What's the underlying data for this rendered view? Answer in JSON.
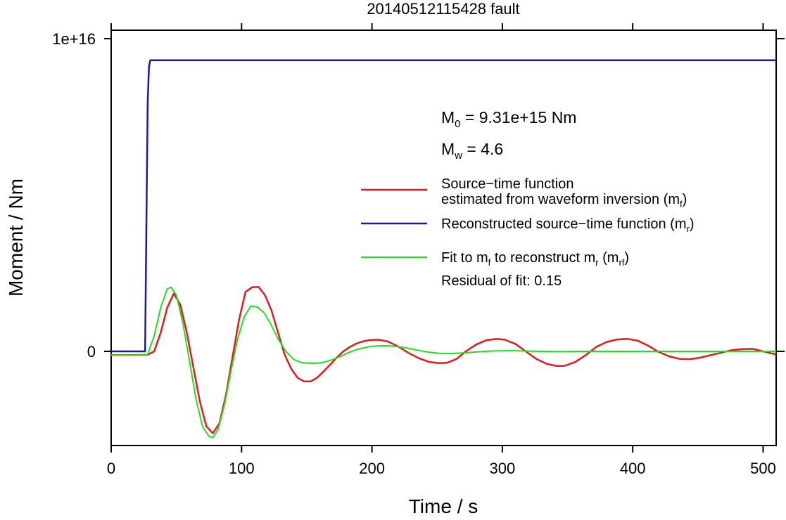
{
  "chart_data": {
    "type": "line",
    "title": "20140512115428 fault",
    "xlabel": "Time / s",
    "ylabel": "Moment / Nm",
    "xlim": [
      0,
      510
    ],
    "ylim": [
      -3000000000000000.0,
      1e+16
    ],
    "x_ticks": [
      0,
      100,
      200,
      300,
      400,
      500
    ],
    "y_tick_labels": [
      {
        "value": 1e+16,
        "label": "1e+16"
      },
      {
        "value": 0,
        "label": "0"
      }
    ],
    "grid": false,
    "legend_placement": "right",
    "annotations": {
      "m0": {
        "main": "M",
        "sub": "0",
        "rest": " = 9.31e+15 Nm"
      },
      "mw": {
        "main": "M",
        "sub": "w",
        "rest": " = 4.6"
      },
      "residual": "Residual of fit: 0.15"
    },
    "series": [
      {
        "name": "Source-time function estimated from waveform inversion (m_f)",
        "color": "#e31a1c",
        "legend_line1": "Source−time function",
        "legend_line2_pre": "estimated from waveform inversion (m",
        "legend_line2_sub": "f",
        "legend_line2_post": ")",
        "x": [
          0,
          10,
          20,
          28,
          33,
          38,
          43,
          48,
          53,
          58,
          63,
          68,
          73,
          78,
          83,
          88,
          93,
          98,
          103,
          108,
          113,
          118,
          123,
          128,
          133,
          138,
          143,
          148,
          153,
          158,
          163,
          168,
          173,
          178,
          183,
          188,
          193,
          198,
          205,
          212,
          220,
          228,
          236,
          244,
          252,
          258,
          265,
          272,
          280,
          288,
          296,
          302,
          310,
          318,
          326,
          334,
          342,
          348,
          356,
          364,
          372,
          380,
          388,
          396,
          404,
          412,
          420,
          428,
          436,
          444,
          452,
          460,
          468,
          476,
          484,
          492,
          500,
          510
        ],
        "y": [
          -120000000000000.0,
          -120000000000000.0,
          -120000000000000.0,
          -110000000000000.0,
          0,
          600000000000000.0,
          1400000000000000.0,
          1850000000000000.0,
          1500000000000000.0,
          600000000000000.0,
          -500000000000000.0,
          -1600000000000000.0,
          -2400000000000000.0,
          -2620000000000000.0,
          -2300000000000000.0,
          -1400000000000000.0,
          -200000000000000.0,
          1000000000000000.0,
          1900000000000000.0,
          2050000000000000.0,
          2060000000000000.0,
          1800000000000000.0,
          1300000000000000.0,
          600000000000000.0,
          -100000000000000.0,
          -550000000000000.0,
          -850000000000000.0,
          -960000000000000.0,
          -960000000000000.0,
          -840000000000000.0,
          -640000000000000.0,
          -420000000000000.0,
          -200000000000000.0,
          0,
          140000000000000.0,
          250000000000000.0,
          320000000000000.0,
          360000000000000.0,
          370000000000000.0,
          320000000000000.0,
          160000000000000.0,
          -50000000000000.0,
          -220000000000000.0,
          -340000000000000.0,
          -380000000000000.0,
          -360000000000000.0,
          -240000000000000.0,
          0,
          220000000000000.0,
          360000000000000.0,
          400000000000000.0,
          370000000000000.0,
          240000000000000.0,
          0,
          -240000000000000.0,
          -400000000000000.0,
          -470000000000000.0,
          -460000000000000.0,
          -340000000000000.0,
          -120000000000000.0,
          140000000000000.0,
          300000000000000.0,
          380000000000000.0,
          400000000000000.0,
          340000000000000.0,
          180000000000000.0,
          -20000000000000.0,
          -160000000000000.0,
          -240000000000000.0,
          -250000000000000.0,
          -200000000000000.0,
          -120000000000000.0,
          -40000000000000.0,
          40000000000000.0,
          70000000000000.0,
          80000000000000.0,
          0,
          -100000000000000.0
        ]
      },
      {
        "name": "Reconstructed source-time function (m_r)",
        "color": "#1a1aa8",
        "legend_pre": "Reconstructed source−time function (m",
        "legend_sub": "r",
        "legend_post": ")",
        "x": [
          0,
          26,
          27,
          28,
          29,
          30,
          31,
          510
        ],
        "y": [
          0,
          0,
          4000000000000000.0,
          8000000000000000.0,
          9100000000000000.0,
          9310000000000000.0,
          9310000000000000.0,
          9310000000000000.0
        ]
      },
      {
        "name": "Fit to m_f to reconstruct m_r (m_rf)",
        "color": "#22dd22",
        "legend_pre": "Fit to m",
        "legend_sub1": "f",
        "legend_mid": " to reconstruct m",
        "legend_sub2": "r",
        "legend_mid2": " (m",
        "legend_sub3": "rf",
        "legend_post": ")",
        "x": [
          0,
          10,
          20,
          28,
          33,
          38,
          43,
          46,
          50,
          55,
          60,
          65,
          70,
          75,
          78,
          82,
          87,
          92,
          97,
          102,
          107,
          112,
          117,
          122,
          128,
          134,
          140,
          146,
          152,
          158,
          164,
          170,
          176,
          182,
          190,
          198,
          206,
          212,
          220,
          228,
          236,
          244,
          252,
          260,
          270,
          280,
          290,
          300,
          310,
          320,
          330,
          345,
          360,
          380,
          400,
          420,
          440,
          460,
          480,
          500,
          510
        ],
        "y": [
          -120000000000000.0,
          -120000000000000.0,
          -120000000000000.0,
          -100000000000000.0,
          500000000000000.0,
          1400000000000000.0,
          2000000000000000.0,
          2050000000000000.0,
          1800000000000000.0,
          900000000000000.0,
          -300000000000000.0,
          -1500000000000000.0,
          -2400000000000000.0,
          -2720000000000000.0,
          -2760000000000000.0,
          -2500000000000000.0,
          -1700000000000000.0,
          -600000000000000.0,
          400000000000000.0,
          1100000000000000.0,
          1450000000000000.0,
          1420000000000000.0,
          1250000000000000.0,
          900000000000000.0,
          400000000000000.0,
          0,
          -260000000000000.0,
          -360000000000000.0,
          -380000000000000.0,
          -380000000000000.0,
          -340000000000000.0,
          -260000000000000.0,
          -160000000000000.0,
          -40000000000000.0,
          80000000000000.0,
          150000000000000.0,
          180000000000000.0,
          180000000000000.0,
          150000000000000.0,
          100000000000000.0,
          30000000000000.0,
          -30000000000000.0,
          -60000000000000.0,
          -70000000000000.0,
          -50000000000000.0,
          -20000000000000.0,
          10000000000000.0,
          20000000000000.0,
          20000000000000.0,
          10000000000000.0,
          0,
          -10000000000000.0,
          0,
          0,
          0,
          0,
          0,
          0,
          0,
          0,
          0
        ]
      }
    ]
  }
}
